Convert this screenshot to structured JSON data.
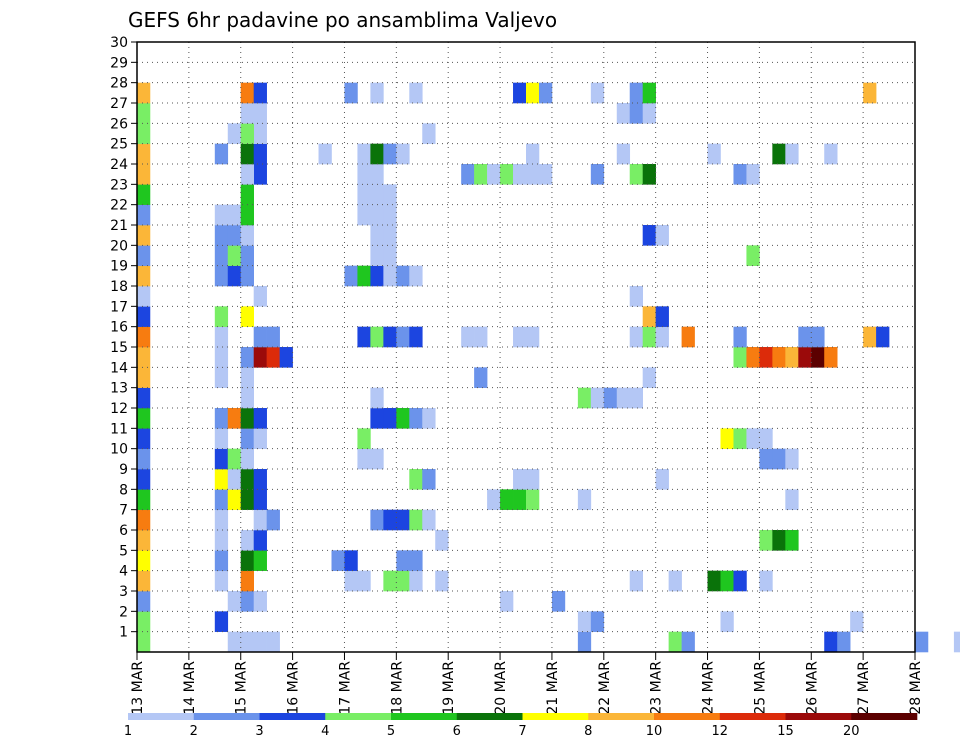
{
  "chart_data": {
    "type": "heatmap",
    "title": "GEFS 6hr padavine po ansamblima Valjevo",
    "x_tick_labels": [
      "13 MAR",
      "14 MAR",
      "15 MAR",
      "16 MAR",
      "17 MAR",
      "18 MAR",
      "19 MAR",
      "20 MAR",
      "21 MAR",
      "22 MAR",
      "23 MAR",
      "24 MAR",
      "25 MAR",
      "26 MAR",
      "27 MAR",
      "28 MAR"
    ],
    "y_tick_labels": [
      "1",
      "2",
      "3",
      "4",
      "5",
      "6",
      "7",
      "8",
      "9",
      "10",
      "11",
      "12",
      "13",
      "14",
      "15",
      "16",
      "17",
      "18",
      "19",
      "20",
      "21",
      "22",
      "23",
      "24",
      "25",
      "26",
      "27",
      "28",
      "29",
      "30"
    ],
    "xlim_days": [
      13,
      28
    ],
    "ylim_members": [
      0,
      30
    ],
    "steps_per_day": 4,
    "grid": "dotted",
    "legend_placement": "bottom",
    "legend": {
      "breakpoints": [
        "1",
        "2",
        "3",
        "4",
        "5",
        "6",
        "7",
        "8",
        "10",
        "12",
        "15",
        "20"
      ],
      "colors": [
        "#b4c7f5",
        "#6b93eb",
        "#1c45e0",
        "#79ee65",
        "#1fc61f",
        "#0a730a",
        "#ffff00",
        "#fbb638",
        "#f77c10",
        "#dc2b0a",
        "#9b0a0a",
        "#5c0000"
      ]
    },
    "cells": [
      {
        "m": 0,
        "t": 0,
        "c": 4
      },
      {
        "m": 0,
        "t": 7,
        "c": 1
      },
      {
        "m": 0,
        "t": 8,
        "c": 1
      },
      {
        "m": 0,
        "t": 9,
        "c": 1
      },
      {
        "m": 0,
        "t": 10,
        "c": 1
      },
      {
        "m": 0,
        "t": 34,
        "c": 2
      },
      {
        "m": 0,
        "t": 41,
        "c": 4
      },
      {
        "m": 0,
        "t": 42,
        "c": 2
      },
      {
        "m": 0,
        "t": 53,
        "c": 3
      },
      {
        "m": 0,
        "t": 54,
        "c": 2
      },
      {
        "m": 0,
        "t": 60,
        "c": 2
      },
      {
        "m": 0,
        "t": 63,
        "c": 1
      },
      {
        "m": 0,
        "t": 68,
        "c": 1
      },
      {
        "m": 0,
        "t": 73,
        "c": 6
      },
      {
        "m": 0,
        "t": 74,
        "c": 8
      },
      {
        "m": 0,
        "t": 75,
        "c": 8
      },
      {
        "m": 0,
        "t": 76,
        "c": 8
      },
      {
        "m": 0,
        "t": 77,
        "c": 2
      },
      {
        "m": 0,
        "t": 78,
        "c": 2
      },
      {
        "m": 1,
        "t": 0,
        "c": 4
      },
      {
        "m": 1,
        "t": 6,
        "c": 3
      },
      {
        "m": 1,
        "t": 34,
        "c": 1
      },
      {
        "m": 1,
        "t": 35,
        "c": 2
      },
      {
        "m": 1,
        "t": 45,
        "c": 1
      },
      {
        "m": 1,
        "t": 55,
        "c": 1
      },
      {
        "m": 1,
        "t": 69,
        "c": 1
      },
      {
        "m": 1,
        "t": 82,
        "c": 1
      },
      {
        "m": 1,
        "t": 83,
        "c": 2
      },
      {
        "m": 1,
        "t": 86,
        "c": 1
      },
      {
        "m": 2,
        "t": 0,
        "c": 2
      },
      {
        "m": 2,
        "t": 7,
        "c": 1
      },
      {
        "m": 2,
        "t": 8,
        "c": 2
      },
      {
        "m": 2,
        "t": 9,
        "c": 1
      },
      {
        "m": 2,
        "t": 28,
        "c": 1
      },
      {
        "m": 2,
        "t": 32,
        "c": 2
      },
      {
        "m": 3,
        "t": 0,
        "c": 8
      },
      {
        "m": 3,
        "t": 6,
        "c": 1
      },
      {
        "m": 3,
        "t": 8,
        "c": 9
      },
      {
        "m": 3,
        "t": 16,
        "c": 1
      },
      {
        "m": 3,
        "t": 17,
        "c": 1
      },
      {
        "m": 3,
        "t": 19,
        "c": 4
      },
      {
        "m": 3,
        "t": 20,
        "c": 4
      },
      {
        "m": 3,
        "t": 21,
        "c": 1
      },
      {
        "m": 3,
        "t": 23,
        "c": 1
      },
      {
        "m": 3,
        "t": 38,
        "c": 1
      },
      {
        "m": 3,
        "t": 41,
        "c": 1
      },
      {
        "m": 3,
        "t": 44,
        "c": 6
      },
      {
        "m": 3,
        "t": 45,
        "c": 5
      },
      {
        "m": 3,
        "t": 46,
        "c": 3
      },
      {
        "m": 3,
        "t": 48,
        "c": 1
      },
      {
        "m": 4,
        "t": 0,
        "c": 7
      },
      {
        "m": 4,
        "t": 6,
        "c": 2
      },
      {
        "m": 4,
        "t": 8,
        "c": 6
      },
      {
        "m": 4,
        "t": 9,
        "c": 5
      },
      {
        "m": 4,
        "t": 15,
        "c": 2
      },
      {
        "m": 4,
        "t": 16,
        "c": 3
      },
      {
        "m": 4,
        "t": 20,
        "c": 2
      },
      {
        "m": 4,
        "t": 21,
        "c": 2
      },
      {
        "m": 4,
        "t": 82,
        "c": 1
      },
      {
        "m": 4,
        "t": 83,
        "c": 8
      },
      {
        "m": 4,
        "t": 85,
        "c": 1
      },
      {
        "m": 5,
        "t": 0,
        "c": 8
      },
      {
        "m": 5,
        "t": 6,
        "c": 1
      },
      {
        "m": 5,
        "t": 8,
        "c": 1
      },
      {
        "m": 5,
        "t": 9,
        "c": 3
      },
      {
        "m": 5,
        "t": 23,
        "c": 1
      },
      {
        "m": 5,
        "t": 48,
        "c": 4
      },
      {
        "m": 5,
        "t": 49,
        "c": 6
      },
      {
        "m": 5,
        "t": 50,
        "c": 5
      },
      {
        "m": 5,
        "t": 80,
        "c": 1
      },
      {
        "m": 6,
        "t": 0,
        "c": 9
      },
      {
        "m": 6,
        "t": 6,
        "c": 1
      },
      {
        "m": 6,
        "t": 9,
        "c": 1
      },
      {
        "m": 6,
        "t": 10,
        "c": 2
      },
      {
        "m": 6,
        "t": 18,
        "c": 2
      },
      {
        "m": 6,
        "t": 19,
        "c": 3
      },
      {
        "m": 6,
        "t": 20,
        "c": 3
      },
      {
        "m": 6,
        "t": 21,
        "c": 4
      },
      {
        "m": 6,
        "t": 22,
        "c": 1
      },
      {
        "m": 7,
        "t": 0,
        "c": 5
      },
      {
        "m": 7,
        "t": 6,
        "c": 2
      },
      {
        "m": 7,
        "t": 7,
        "c": 7
      },
      {
        "m": 7,
        "t": 8,
        "c": 6
      },
      {
        "m": 7,
        "t": 9,
        "c": 3
      },
      {
        "m": 7,
        "t": 27,
        "c": 1
      },
      {
        "m": 7,
        "t": 28,
        "c": 5
      },
      {
        "m": 7,
        "t": 29,
        "c": 5
      },
      {
        "m": 7,
        "t": 30,
        "c": 4
      },
      {
        "m": 7,
        "t": 34,
        "c": 1
      },
      {
        "m": 7,
        "t": 50,
        "c": 1
      },
      {
        "m": 8,
        "t": 0,
        "c": 3
      },
      {
        "m": 8,
        "t": 6,
        "c": 7
      },
      {
        "m": 8,
        "t": 7,
        "c": 1
      },
      {
        "m": 8,
        "t": 8,
        "c": 6
      },
      {
        "m": 8,
        "t": 9,
        "c": 3
      },
      {
        "m": 8,
        "t": 21,
        "c": 4
      },
      {
        "m": 8,
        "t": 22,
        "c": 2
      },
      {
        "m": 8,
        "t": 29,
        "c": 1
      },
      {
        "m": 8,
        "t": 30,
        "c": 1
      },
      {
        "m": 8,
        "t": 40,
        "c": 1
      },
      {
        "m": 9,
        "t": 0,
        "c": 2
      },
      {
        "m": 9,
        "t": 6,
        "c": 3
      },
      {
        "m": 9,
        "t": 7,
        "c": 4
      },
      {
        "m": 9,
        "t": 8,
        "c": 1
      },
      {
        "m": 9,
        "t": 17,
        "c": 1
      },
      {
        "m": 9,
        "t": 18,
        "c": 1
      },
      {
        "m": 9,
        "t": 48,
        "c": 2
      },
      {
        "m": 9,
        "t": 49,
        "c": 2
      },
      {
        "m": 9,
        "t": 50,
        "c": 1
      },
      {
        "m": 10,
        "t": 0,
        "c": 3
      },
      {
        "m": 10,
        "t": 6,
        "c": 1
      },
      {
        "m": 10,
        "t": 8,
        "c": 2
      },
      {
        "m": 10,
        "t": 9,
        "c": 1
      },
      {
        "m": 10,
        "t": 17,
        "c": 4
      },
      {
        "m": 10,
        "t": 45,
        "c": 7
      },
      {
        "m": 10,
        "t": 46,
        "c": 4
      },
      {
        "m": 10,
        "t": 47,
        "c": 1
      },
      {
        "m": 10,
        "t": 48,
        "c": 1
      },
      {
        "m": 11,
        "t": 0,
        "c": 5
      },
      {
        "m": 11,
        "t": 6,
        "c": 2
      },
      {
        "m": 11,
        "t": 7,
        "c": 9
      },
      {
        "m": 11,
        "t": 8,
        "c": 6
      },
      {
        "m": 11,
        "t": 9,
        "c": 3
      },
      {
        "m": 11,
        "t": 18,
        "c": 3
      },
      {
        "m": 11,
        "t": 19,
        "c": 3
      },
      {
        "m": 11,
        "t": 20,
        "c": 5
      },
      {
        "m": 11,
        "t": 21,
        "c": 2
      },
      {
        "m": 11,
        "t": 22,
        "c": 1
      },
      {
        "m": 12,
        "t": 0,
        "c": 3
      },
      {
        "m": 12,
        "t": 8,
        "c": 1
      },
      {
        "m": 12,
        "t": 18,
        "c": 1
      },
      {
        "m": 12,
        "t": 34,
        "c": 4
      },
      {
        "m": 12,
        "t": 35,
        "c": 1
      },
      {
        "m": 12,
        "t": 36,
        "c": 2
      },
      {
        "m": 12,
        "t": 37,
        "c": 1
      },
      {
        "m": 12,
        "t": 38,
        "c": 1
      },
      {
        "m": 13,
        "t": 0,
        "c": 8
      },
      {
        "m": 13,
        "t": 6,
        "c": 1
      },
      {
        "m": 13,
        "t": 8,
        "c": 1
      },
      {
        "m": 13,
        "t": 26,
        "c": 2
      },
      {
        "m": 13,
        "t": 39,
        "c": 1
      },
      {
        "m": 14,
        "t": 0,
        "c": 8
      },
      {
        "m": 14,
        "t": 6,
        "c": 1
      },
      {
        "m": 14,
        "t": 8,
        "c": 2
      },
      {
        "m": 14,
        "t": 9,
        "c": 11
      },
      {
        "m": 14,
        "t": 10,
        "c": 10
      },
      {
        "m": 14,
        "t": 11,
        "c": 3
      },
      {
        "m": 14,
        "t": 46,
        "c": 4
      },
      {
        "m": 14,
        "t": 47,
        "c": 9
      },
      {
        "m": 14,
        "t": 48,
        "c": 10
      },
      {
        "m": 14,
        "t": 49,
        "c": 9
      },
      {
        "m": 14,
        "t": 50,
        "c": 8
      },
      {
        "m": 14,
        "t": 51,
        "c": 11
      },
      {
        "m": 14,
        "t": 52,
        "c": 12
      },
      {
        "m": 14,
        "t": 53,
        "c": 9
      },
      {
        "m": 15,
        "t": 0,
        "c": 9
      },
      {
        "m": 15,
        "t": 6,
        "c": 1
      },
      {
        "m": 15,
        "t": 9,
        "c": 2
      },
      {
        "m": 15,
        "t": 10,
        "c": 2
      },
      {
        "m": 15,
        "t": 17,
        "c": 3
      },
      {
        "m": 15,
        "t": 18,
        "c": 4
      },
      {
        "m": 15,
        "t": 19,
        "c": 3
      },
      {
        "m": 15,
        "t": 20,
        "c": 2
      },
      {
        "m": 15,
        "t": 21,
        "c": 3
      },
      {
        "m": 15,
        "t": 25,
        "c": 1
      },
      {
        "m": 15,
        "t": 26,
        "c": 1
      },
      {
        "m": 15,
        "t": 29,
        "c": 1
      },
      {
        "m": 15,
        "t": 30,
        "c": 1
      },
      {
        "m": 15,
        "t": 38,
        "c": 1
      },
      {
        "m": 15,
        "t": 39,
        "c": 4
      },
      {
        "m": 15,
        "t": 40,
        "c": 1
      },
      {
        "m": 15,
        "t": 42,
        "c": 9
      },
      {
        "m": 15,
        "t": 46,
        "c": 2
      },
      {
        "m": 15,
        "t": 51,
        "c": 2
      },
      {
        "m": 15,
        "t": 52,
        "c": 2
      },
      {
        "m": 15,
        "t": 56,
        "c": 8
      },
      {
        "m": 15,
        "t": 57,
        "c": 3
      },
      {
        "m": 16,
        "t": 0,
        "c": 3
      },
      {
        "m": 16,
        "t": 6,
        "c": 4
      },
      {
        "m": 16,
        "t": 8,
        "c": 7
      },
      {
        "m": 16,
        "t": 39,
        "c": 8
      },
      {
        "m": 16,
        "t": 40,
        "c": 3
      },
      {
        "m": 17,
        "t": 0,
        "c": 1
      },
      {
        "m": 17,
        "t": 9,
        "c": 1
      },
      {
        "m": 17,
        "t": 38,
        "c": 1
      },
      {
        "m": 18,
        "t": 0,
        "c": 8
      },
      {
        "m": 18,
        "t": 6,
        "c": 2
      },
      {
        "m": 18,
        "t": 7,
        "c": 3
      },
      {
        "m": 18,
        "t": 8,
        "c": 2
      },
      {
        "m": 18,
        "t": 16,
        "c": 2
      },
      {
        "m": 18,
        "t": 17,
        "c": 5
      },
      {
        "m": 18,
        "t": 18,
        "c": 3
      },
      {
        "m": 18,
        "t": 19,
        "c": 1
      },
      {
        "m": 18,
        "t": 20,
        "c": 2
      },
      {
        "m": 18,
        "t": 21,
        "c": 1
      },
      {
        "m": 19,
        "t": 0,
        "c": 2
      },
      {
        "m": 19,
        "t": 6,
        "c": 2
      },
      {
        "m": 19,
        "t": 7,
        "c": 4
      },
      {
        "m": 19,
        "t": 8,
        "c": 2
      },
      {
        "m": 19,
        "t": 18,
        "c": 1
      },
      {
        "m": 19,
        "t": 19,
        "c": 1
      },
      {
        "m": 19,
        "t": 47,
        "c": 4
      },
      {
        "m": 20,
        "t": 0,
        "c": 8
      },
      {
        "m": 20,
        "t": 6,
        "c": 2
      },
      {
        "m": 20,
        "t": 7,
        "c": 2
      },
      {
        "m": 20,
        "t": 8,
        "c": 1
      },
      {
        "m": 20,
        "t": 18,
        "c": 1
      },
      {
        "m": 20,
        "t": 19,
        "c": 1
      },
      {
        "m": 20,
        "t": 39,
        "c": 3
      },
      {
        "m": 20,
        "t": 40,
        "c": 1
      },
      {
        "m": 21,
        "t": 0,
        "c": 2
      },
      {
        "m": 21,
        "t": 6,
        "c": 1
      },
      {
        "m": 21,
        "t": 7,
        "c": 1
      },
      {
        "m": 21,
        "t": 8,
        "c": 5
      },
      {
        "m": 21,
        "t": 17,
        "c": 1
      },
      {
        "m": 21,
        "t": 18,
        "c": 1
      },
      {
        "m": 21,
        "t": 19,
        "c": 1
      },
      {
        "m": 22,
        "t": 0,
        "c": 5
      },
      {
        "m": 22,
        "t": 8,
        "c": 5
      },
      {
        "m": 22,
        "t": 17,
        "c": 1
      },
      {
        "m": 22,
        "t": 18,
        "c": 1
      },
      {
        "m": 22,
        "t": 19,
        "c": 1
      },
      {
        "m": 23,
        "t": 0,
        "c": 8
      },
      {
        "m": 23,
        "t": 9,
        "c": 3
      },
      {
        "m": 23,
        "t": 8,
        "c": 1
      },
      {
        "m": 23,
        "t": 17,
        "c": 1
      },
      {
        "m": 23,
        "t": 18,
        "c": 1
      },
      {
        "m": 23,
        "t": 25,
        "c": 2
      },
      {
        "m": 23,
        "t": 26,
        "c": 4
      },
      {
        "m": 23,
        "t": 27,
        "c": 1
      },
      {
        "m": 23,
        "t": 28,
        "c": 4
      },
      {
        "m": 23,
        "t": 29,
        "c": 1
      },
      {
        "m": 23,
        "t": 30,
        "c": 1
      },
      {
        "m": 23,
        "t": 31,
        "c": 1
      },
      {
        "m": 23,
        "t": 35,
        "c": 2
      },
      {
        "m": 23,
        "t": 38,
        "c": 4
      },
      {
        "m": 23,
        "t": 39,
        "c": 6
      },
      {
        "m": 23,
        "t": 46,
        "c": 2
      },
      {
        "m": 23,
        "t": 47,
        "c": 1
      },
      {
        "m": 24,
        "t": 0,
        "c": 8
      },
      {
        "m": 24,
        "t": 6,
        "c": 2
      },
      {
        "m": 24,
        "t": 8,
        "c": 6
      },
      {
        "m": 24,
        "t": 9,
        "c": 3
      },
      {
        "m": 24,
        "t": 14,
        "c": 1
      },
      {
        "m": 24,
        "t": 17,
        "c": 1
      },
      {
        "m": 24,
        "t": 18,
        "c": 6
      },
      {
        "m": 24,
        "t": 19,
        "c": 2
      },
      {
        "m": 24,
        "t": 20,
        "c": 1
      },
      {
        "m": 24,
        "t": 30,
        "c": 1
      },
      {
        "m": 24,
        "t": 37,
        "c": 1
      },
      {
        "m": 24,
        "t": 44,
        "c": 1
      },
      {
        "m": 24,
        "t": 49,
        "c": 6
      },
      {
        "m": 24,
        "t": 50,
        "c": 1
      },
      {
        "m": 24,
        "t": 53,
        "c": 1
      },
      {
        "m": 25,
        "t": 0,
        "c": 4
      },
      {
        "m": 25,
        "t": 9,
        "c": 1
      },
      {
        "m": 25,
        "t": 7,
        "c": 1
      },
      {
        "m": 25,
        "t": 8,
        "c": 4
      },
      {
        "m": 25,
        "t": 22,
        "c": 1
      },
      {
        "m": 26,
        "t": 0,
        "c": 4
      },
      {
        "m": 26,
        "t": 8,
        "c": 1
      },
      {
        "m": 26,
        "t": 9,
        "c": 1
      },
      {
        "m": 26,
        "t": 37,
        "c": 1
      },
      {
        "m": 26,
        "t": 38,
        "c": 2
      },
      {
        "m": 26,
        "t": 39,
        "c": 1
      },
      {
        "m": 27,
        "t": 0,
        "c": 8
      },
      {
        "m": 27,
        "t": 8,
        "c": 9
      },
      {
        "m": 27,
        "t": 9,
        "c": 3
      },
      {
        "m": 27,
        "t": 16,
        "c": 2
      },
      {
        "m": 27,
        "t": 18,
        "c": 1
      },
      {
        "m": 27,
        "t": 21,
        "c": 1
      },
      {
        "m": 27,
        "t": 29,
        "c": 3
      },
      {
        "m": 27,
        "t": 30,
        "c": 7
      },
      {
        "m": 27,
        "t": 31,
        "c": 2
      },
      {
        "m": 27,
        "t": 35,
        "c": 1
      },
      {
        "m": 27,
        "t": 38,
        "c": 2
      },
      {
        "m": 27,
        "t": 39,
        "c": 5
      },
      {
        "m": 27,
        "t": 56,
        "c": 8
      }
    ]
  }
}
